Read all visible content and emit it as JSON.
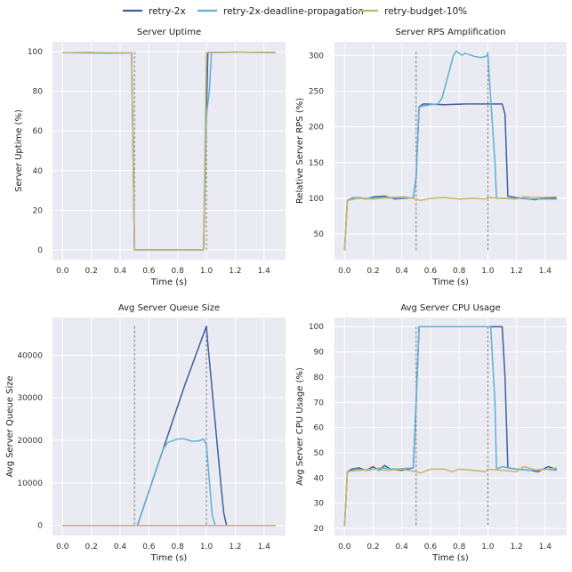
{
  "chart_data": {
    "legend": {
      "placement": "top-center",
      "items": [
        {
          "name": "retry-2x",
          "color": "#3f5fa0"
        },
        {
          "name": "retry-2x-deadline-propagation",
          "color": "#5fb0d2"
        },
        {
          "name": "retry-budget-10%",
          "color": "#c8b46a"
        }
      ]
    },
    "charts": [
      {
        "type": "line",
        "title": "Server Uptime",
        "xlabel": "Time (s)",
        "ylabel": "Server Uptime (%)",
        "xlim": [
          -0.07,
          1.55
        ],
        "ylim": [
          -5,
          105
        ],
        "xticks": [
          "0.0",
          "0.2",
          "0.4",
          "0.6",
          "0.8",
          "1.0",
          "1.2",
          "1.4"
        ],
        "yticks": [
          "0",
          "20",
          "40",
          "60",
          "80",
          "100"
        ],
        "vlines": [
          0.5,
          1.0
        ],
        "series": [
          {
            "name": "retry-2x",
            "points": [
              [
                0,
                99.5
              ],
              [
                0.2,
                99.6
              ],
              [
                0.3,
                99.3
              ],
              [
                0.48,
                99.5
              ],
              [
                0.5,
                0
              ],
              [
                0.98,
                0
              ],
              [
                1.0,
                68
              ],
              [
                1.01,
                99.6
              ],
              [
                1.2,
                99.8
              ],
              [
                1.48,
                99.6
              ]
            ]
          },
          {
            "name": "retry-2x-deadline-propagation",
            "points": [
              [
                0,
                99.5
              ],
              [
                0.3,
                99.2
              ],
              [
                0.48,
                99.5
              ],
              [
                0.5,
                0
              ],
              [
                0.98,
                0
              ],
              [
                1.0,
                68
              ],
              [
                1.02,
                80
              ],
              [
                1.035,
                99.6
              ],
              [
                1.2,
                99.8
              ],
              [
                1.48,
                99.6
              ]
            ]
          },
          {
            "name": "retry-budget-10%",
            "points": [
              [
                0,
                99.5
              ],
              [
                0.2,
                99.6
              ],
              [
                0.48,
                99.5
              ],
              [
                0.5,
                0
              ],
              [
                0.98,
                0
              ],
              [
                1.0,
                99.5
              ],
              [
                1.2,
                99.7
              ],
              [
                1.48,
                99.6
              ]
            ]
          }
        ]
      },
      {
        "type": "line",
        "title": "Server RPS Amplification",
        "xlabel": "Time (s)",
        "ylabel": "Relative Server RPS (%)",
        "xlim": [
          -0.07,
          1.55
        ],
        "ylim": [
          14,
          319
        ],
        "xticks": [
          "0.0",
          "0.2",
          "0.4",
          "0.6",
          "0.8",
          "1.0",
          "1.2",
          "1.4"
        ],
        "yticks": [
          "50",
          "100",
          "150",
          "200",
          "250",
          "300"
        ],
        "vlines": [
          0.5,
          1.0
        ],
        "series": [
          {
            "name": "retry-2x",
            "points": [
              [
                0,
                27
              ],
              [
                0.02,
                97
              ],
              [
                0.05,
                100
              ],
              [
                0.1,
                101
              ],
              [
                0.15,
                99
              ],
              [
                0.2,
                102
              ],
              [
                0.28,
                103
              ],
              [
                0.35,
                99
              ],
              [
                0.42,
                100
              ],
              [
                0.48,
                101
              ],
              [
                0.5,
                130
              ],
              [
                0.52,
                228
              ],
              [
                0.55,
                232
              ],
              [
                0.7,
                231
              ],
              [
                0.85,
                232
              ],
              [
                1.0,
                232
              ],
              [
                1.1,
                232
              ],
              [
                1.12,
                218
              ],
              [
                1.14,
                103
              ],
              [
                1.2,
                101
              ],
              [
                1.33,
                98
              ],
              [
                1.4,
                101
              ],
              [
                1.48,
                100
              ]
            ]
          },
          {
            "name": "retry-2x-deadline-propagation",
            "points": [
              [
                0,
                27
              ],
              [
                0.02,
                97
              ],
              [
                0.06,
                101
              ],
              [
                0.15,
                100
              ],
              [
                0.25,
                101
              ],
              [
                0.35,
                100
              ],
              [
                0.48,
                101
              ],
              [
                0.5,
                130
              ],
              [
                0.52,
                228
              ],
              [
                0.6,
                231
              ],
              [
                0.65,
                232
              ],
              [
                0.68,
                240
              ],
              [
                0.72,
                270
              ],
              [
                0.76,
                300
              ],
              [
                0.78,
                306
              ],
              [
                0.8,
                303
              ],
              [
                0.82,
                300
              ],
              [
                0.84,
                303
              ],
              [
                0.9,
                299
              ],
              [
                0.95,
                297
              ],
              [
                0.99,
                299
              ],
              [
                1.0,
                302
              ],
              [
                1.01,
                270
              ],
              [
                1.05,
                150
              ],
              [
                1.06,
                100
              ],
              [
                1.2,
                100
              ],
              [
                1.3,
                99
              ],
              [
                1.48,
                99
              ]
            ]
          },
          {
            "name": "retry-budget-10%",
            "points": [
              [
                0,
                27
              ],
              [
                0.02,
                97
              ],
              [
                0.1,
                100
              ],
              [
                0.2,
                99
              ],
              [
                0.3,
                101
              ],
              [
                0.42,
                102
              ],
              [
                0.5,
                99
              ],
              [
                0.53,
                97
              ],
              [
                0.6,
                100
              ],
              [
                0.7,
                101
              ],
              [
                0.8,
                99
              ],
              [
                0.9,
                100
              ],
              [
                0.98,
                99
              ],
              [
                1.0,
                101
              ],
              [
                1.1,
                100
              ],
              [
                1.2,
                99
              ],
              [
                1.25,
                102
              ],
              [
                1.35,
                101
              ],
              [
                1.48,
                102
              ]
            ]
          }
        ]
      },
      {
        "type": "line",
        "title": "Avg Server Queue Size",
        "xlabel": "Time (s)",
        "ylabel": "Avg Server Queue Size",
        "xlim": [
          -0.07,
          1.55
        ],
        "ylim": [
          -2360,
          48840
        ],
        "xticks": [
          "0.0",
          "0.2",
          "0.4",
          "0.6",
          "0.8",
          "1.0",
          "1.2",
          "1.4"
        ],
        "yticks": [
          "0",
          "10000",
          "20000",
          "30000",
          "40000"
        ],
        "vlines": [
          0.5,
          1.0
        ],
        "series": [
          {
            "name": "retry-2x",
            "points": [
              [
                0,
                0
              ],
              [
                0.52,
                0
              ],
              [
                0.7,
                18000
              ],
              [
                0.85,
                33000
              ],
              [
                1.0,
                46800
              ],
              [
                1.01,
                42500
              ],
              [
                1.1,
                10000
              ],
              [
                1.12,
                3000
              ],
              [
                1.14,
                0
              ],
              [
                1.48,
                0
              ]
            ]
          },
          {
            "name": "retry-2x-deadline-propagation",
            "points": [
              [
                0,
                0
              ],
              [
                0.52,
                0
              ],
              [
                0.7,
                18000
              ],
              [
                0.73,
                19500
              ],
              [
                0.8,
                20300
              ],
              [
                0.84,
                20400
              ],
              [
                0.9,
                19800
              ],
              [
                0.95,
                19900
              ],
              [
                0.98,
                20300
              ],
              [
                1.0,
                19000
              ],
              [
                1.04,
                2500
              ],
              [
                1.06,
                0
              ],
              [
                1.48,
                0
              ]
            ]
          },
          {
            "name": "retry-budget-10%",
            "points": [
              [
                0,
                0
              ],
              [
                1.48,
                0
              ]
            ]
          }
        ]
      },
      {
        "type": "line",
        "title": "Avg Server CPU Usage",
        "xlabel": "Time (s)",
        "ylabel": "Avg Server CPU Usage (%)",
        "xlim": [
          -0.07,
          1.55
        ],
        "ylim": [
          17.2,
          103.6
        ],
        "xticks": [
          "0.0",
          "0.2",
          "0.4",
          "0.6",
          "0.8",
          "1.0",
          "1.2",
          "1.4"
        ],
        "yticks": [
          "20",
          "30",
          "40",
          "50",
          "60",
          "70",
          "80",
          "90",
          "100"
        ],
        "vlines": [
          0.5,
          1.0
        ],
        "series": [
          {
            "name": "retry-2x",
            "points": [
              [
                0,
                21
              ],
              [
                0.02,
                42.5
              ],
              [
                0.05,
                43.5
              ],
              [
                0.1,
                44
              ],
              [
                0.15,
                43
              ],
              [
                0.2,
                44.5
              ],
              [
                0.24,
                43
              ],
              [
                0.28,
                45
              ],
              [
                0.32,
                43.5
              ],
              [
                0.4,
                43
              ],
              [
                0.48,
                44
              ],
              [
                0.5,
                70
              ],
              [
                0.52,
                100
              ],
              [
                1.1,
                100
              ],
              [
                1.12,
                80
              ],
              [
                1.14,
                44
              ],
              [
                1.2,
                43.5
              ],
              [
                1.3,
                43
              ],
              [
                1.35,
                42.5
              ],
              [
                1.42,
                44.5
              ],
              [
                1.48,
                43.5
              ]
            ]
          },
          {
            "name": "retry-2x-deadline-propagation",
            "points": [
              [
                0,
                21
              ],
              [
                0.02,
                42.5
              ],
              [
                0.08,
                43.5
              ],
              [
                0.16,
                43
              ],
              [
                0.25,
                44
              ],
              [
                0.35,
                43.5
              ],
              [
                0.48,
                44
              ],
              [
                0.5,
                70
              ],
              [
                0.52,
                100
              ],
              [
                1.02,
                100
              ],
              [
                1.05,
                70
              ],
              [
                1.06,
                43.5
              ],
              [
                1.1,
                44.5
              ],
              [
                1.2,
                43.5
              ],
              [
                1.3,
                43
              ],
              [
                1.4,
                43.5
              ],
              [
                1.48,
                43
              ]
            ]
          },
          {
            "name": "retry-budget-10%",
            "points": [
              [
                0,
                21
              ],
              [
                0.02,
                42.5
              ],
              [
                0.1,
                43
              ],
              [
                0.2,
                43.5
              ],
              [
                0.3,
                43
              ],
              [
                0.4,
                43.5
              ],
              [
                0.5,
                42.5
              ],
              [
                0.53,
                42
              ],
              [
                0.6,
                43.5
              ],
              [
                0.7,
                43.5
              ],
              [
                0.75,
                42.5
              ],
              [
                0.8,
                43.5
              ],
              [
                0.9,
                43
              ],
              [
                0.98,
                42.5
              ],
              [
                1.0,
                43.5
              ],
              [
                1.1,
                43
              ],
              [
                1.2,
                42.5
              ],
              [
                1.25,
                44.5
              ],
              [
                1.35,
                43
              ],
              [
                1.48,
                44
              ]
            ]
          }
        ]
      }
    ]
  }
}
